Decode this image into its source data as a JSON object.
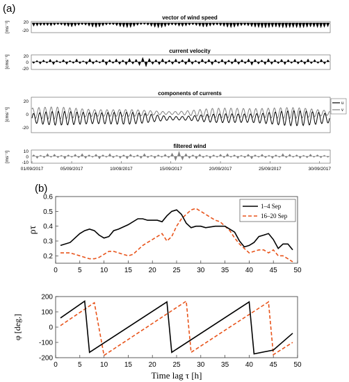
{
  "figure": {
    "label_a": "(a)",
    "label_b": "(b)"
  },
  "chart_data": [
    {
      "type": "area",
      "panel": "a",
      "title": "vector of wind speed",
      "ylabel": "[ms⁻¹]",
      "yticks": [
        "20",
        "-20"
      ],
      "ylim": [
        -30,
        30
      ],
      "render": "stick",
      "fill": "#000000",
      "series": [
        {
          "values": [
            -18,
            -17,
            -15,
            -14,
            -15,
            -17,
            -13,
            -10,
            -12,
            -16,
            -20,
            -22,
            -18,
            -14,
            -11,
            -13,
            -18,
            -23,
            -25,
            -22,
            -17,
            -12,
            -10,
            -11,
            -16,
            -21,
            -24,
            -26,
            -25,
            -20,
            -14,
            -10,
            -9,
            -13,
            -19,
            -24,
            -27,
            -26,
            -21,
            -15,
            -12,
            -14,
            -18,
            -20,
            -17,
            -13,
            -11,
            -15,
            -19,
            -23,
            -22,
            -18,
            -14,
            -12,
            -16,
            -20,
            -24,
            -26,
            -24,
            -20,
            -16,
            -14,
            -17,
            -21,
            -24,
            -25,
            -27,
            -27,
            -26,
            -24,
            -23,
            -25,
            -27,
            -27,
            -26,
            -25,
            -26,
            -27,
            -26,
            -24,
            -22,
            -23,
            -25,
            -26,
            -24,
            -21
          ]
        }
      ]
    },
    {
      "type": "area",
      "panel": "a",
      "title": "current velocity",
      "ylabel": "[cms⁻¹]",
      "yticks": [
        "20",
        "0",
        "-20"
      ],
      "ylim": [
        -25,
        25
      ],
      "render": "stick",
      "fill": "#000000",
      "series": [
        {
          "values": [
            -6,
            5,
            -8,
            7,
            -5,
            9,
            -10,
            6,
            -4,
            8,
            -9,
            5,
            -6,
            10,
            -7,
            4,
            -9,
            11,
            -8,
            6,
            -5,
            9,
            -12,
            8,
            -6,
            10,
            -9,
            7,
            -11,
            12,
            -8,
            9,
            -13,
            15,
            -17,
            12,
            -9,
            8,
            -10,
            11,
            -8,
            7,
            -9,
            10,
            -7,
            8,
            -10,
            12,
            -9,
            6,
            -8,
            10,
            -7,
            9,
            -11,
            8,
            -6,
            9,
            -10,
            7,
            -8,
            11,
            -9,
            8,
            -7,
            10,
            -12,
            9,
            -8,
            7,
            -10,
            11,
            -9,
            8,
            -7,
            9,
            -10,
            8,
            -6,
            9,
            -8,
            7,
            -9,
            10,
            -7,
            8,
            -6,
            9,
            -8,
            7
          ]
        }
      ]
    },
    {
      "type": "line",
      "panel": "a",
      "title": "components of currents",
      "ylabel": "[cms⁻¹]",
      "yticks": [
        "20",
        "0",
        "-20"
      ],
      "ylim": [
        -27,
        27
      ],
      "legend_position": "right",
      "series": [
        {
          "name": "u",
          "color": "#000000",
          "amplitude": 10,
          "offset": -5,
          "periods": 48
        },
        {
          "name": "v",
          "color": "#808080",
          "amplitude": 8,
          "offset": 3,
          "periods": 48
        }
      ]
    },
    {
      "type": "area",
      "panel": "a",
      "title": "filtered wind",
      "ylabel": "[ms⁻¹]",
      "yticks": [
        "10",
        "0",
        "-10"
      ],
      "ylim": [
        -12,
        12
      ],
      "render": "stick",
      "fill": "#808080",
      "xticks": [
        "01/09/2017",
        "05/09/2017",
        "10/09/2017",
        "15/09/2017",
        "20/09/2017",
        "25/09/2017",
        "30/09/2017"
      ],
      "xlim_days": [
        1,
        31
      ],
      "series": [
        {
          "values": [
            3,
            -4,
            2,
            -3,
            5,
            -2,
            4,
            -3,
            2,
            -5,
            3,
            -2,
            4,
            -3,
            5,
            -4,
            3,
            -2,
            4,
            -5,
            3,
            -2,
            5,
            -3,
            2,
            -4,
            3,
            -5,
            4,
            -2,
            3,
            -4,
            5,
            -3,
            2,
            -4,
            3,
            -2,
            4,
            -3,
            6,
            -8,
            9,
            -7,
            5,
            -4,
            3,
            -5,
            4,
            -3,
            2,
            -4,
            3,
            -2,
            4,
            -3,
            5,
            -2,
            3,
            -4,
            2,
            -3,
            4,
            -5,
            3,
            -2,
            4,
            -3,
            2,
            -4,
            3,
            -2,
            5,
            -3,
            4,
            -2,
            3,
            -4,
            2,
            -3,
            4,
            -2,
            3,
            -3,
            2,
            -2
          ]
        }
      ]
    },
    {
      "type": "line",
      "panel": "b",
      "ylabel": "ρτ",
      "xlim": [
        0,
        50
      ],
      "ylim": [
        0.15,
        0.6
      ],
      "xticks": [
        0,
        5,
        10,
        15,
        20,
        25,
        30,
        35,
        40,
        45,
        50
      ],
      "yticks": [
        0.2,
        0.3,
        0.4,
        0.5,
        0.6
      ],
      "legend_position": "top-right",
      "series": [
        {
          "name": "1–4 Sep",
          "color": "#000000",
          "style": "solid",
          "x": [
            1,
            3,
            5,
            6,
            7,
            8,
            9,
            10,
            11,
            12,
            13,
            15,
            17,
            18,
            19,
            20,
            21,
            22,
            23,
            24,
            25,
            26,
            27,
            28,
            29,
            30,
            31,
            33,
            35,
            37,
            38,
            39,
            40,
            41,
            42,
            43,
            44,
            45,
            46,
            47,
            48,
            49
          ],
          "y": [
            0.27,
            0.29,
            0.35,
            0.37,
            0.38,
            0.37,
            0.34,
            0.32,
            0.33,
            0.37,
            0.38,
            0.41,
            0.45,
            0.45,
            0.44,
            0.44,
            0.44,
            0.43,
            0.47,
            0.5,
            0.51,
            0.48,
            0.42,
            0.39,
            0.4,
            0.4,
            0.39,
            0.4,
            0.4,
            0.36,
            0.3,
            0.26,
            0.27,
            0.29,
            0.33,
            0.34,
            0.35,
            0.31,
            0.25,
            0.28,
            0.28,
            0.24
          ]
        },
        {
          "name": "16–20 Sep",
          "color": "#e8531a",
          "style": "dashed",
          "x": [
            1,
            3,
            4,
            5,
            6,
            7,
            8,
            9,
            10,
            11,
            12,
            13,
            14,
            15,
            16,
            17,
            18,
            19,
            20,
            21,
            22,
            23,
            24,
            25,
            26,
            27,
            28,
            29,
            30,
            31,
            32,
            33,
            34,
            35,
            36,
            37,
            38,
            39,
            40,
            41,
            42,
            43,
            44,
            45,
            46,
            47,
            48,
            49
          ],
          "y": [
            0.22,
            0.22,
            0.21,
            0.2,
            0.19,
            0.18,
            0.18,
            0.19,
            0.21,
            0.23,
            0.23,
            0.22,
            0.21,
            0.2,
            0.21,
            0.24,
            0.27,
            0.29,
            0.31,
            0.33,
            0.35,
            0.3,
            0.33,
            0.4,
            0.45,
            0.48,
            0.51,
            0.52,
            0.5,
            0.48,
            0.46,
            0.44,
            0.43,
            0.4,
            0.37,
            0.32,
            0.28,
            0.25,
            0.22,
            0.23,
            0.24,
            0.24,
            0.22,
            0.24,
            0.2,
            0.2,
            0.18,
            0.16
          ]
        }
      ]
    },
    {
      "type": "line",
      "panel": "b",
      "ylabel": "φ [deg.]",
      "xlabel": "Time lag τ [h]",
      "xlim": [
        0,
        50
      ],
      "ylim": [
        -200,
        200
      ],
      "xticks": [
        0,
        5,
        10,
        15,
        20,
        25,
        30,
        35,
        40,
        45,
        50
      ],
      "yticks": [
        -200,
        -100,
        0,
        100,
        200
      ],
      "series": [
        {
          "name": "1–4 Sep",
          "color": "#000000",
          "style": "solid",
          "x": [
            1,
            6,
            7,
            23,
            24,
            40,
            41,
            45,
            49
          ],
          "y": [
            60,
            170,
            -165,
            165,
            -165,
            165,
            -175,
            -150,
            -40
          ]
        },
        {
          "name": "16–20 Sep",
          "color": "#e8531a",
          "style": "dashed",
          "x": [
            1,
            8,
            10,
            27,
            28,
            44,
            45,
            49
          ],
          "y": [
            10,
            160,
            -185,
            170,
            -165,
            165,
            -180,
            -100
          ]
        }
      ]
    }
  ]
}
